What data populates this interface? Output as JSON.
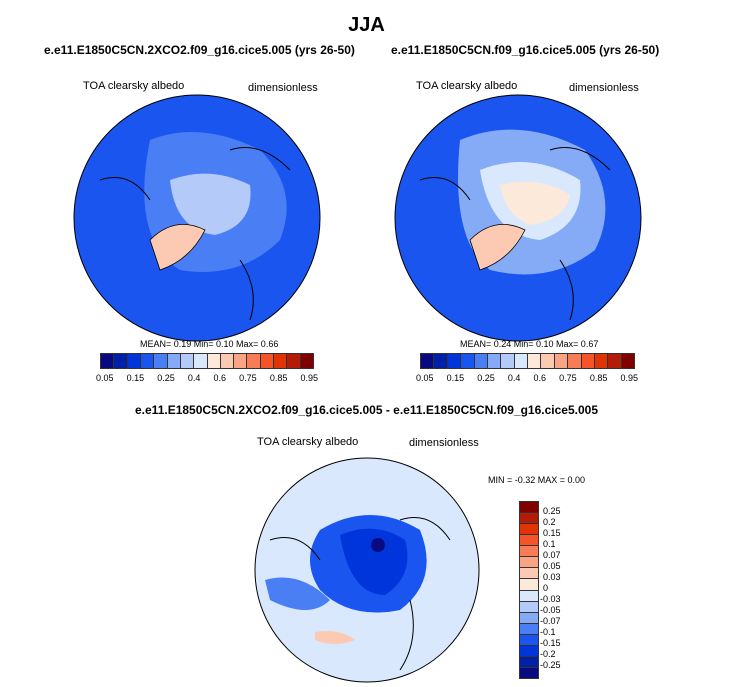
{
  "title": "JJA",
  "panels": [
    {
      "case": "e.e11.E1850C5CN.2XCO2.f09_g16.cice5.005 (yrs 26-50)",
      "variable": "TOA clearsky albedo",
      "units": "dimensionless",
      "stats": "MEAN=   0.19  Min=   0.10  Max=   0.66"
    },
    {
      "case": "e.e11.E1850C5CN.f09_g16.cice5.005 (yrs 26-50)",
      "variable": "TOA clearsky albedo",
      "units": "dimensionless",
      "stats": "MEAN=   0.24  Min=   0.10  Max=   0.67"
    }
  ],
  "diff": {
    "case": "e.e11.E1850C5CN.2XCO2.f09_g16.cice5.005 - e.e11.E1850C5CN.f09_g16.cice5.005",
    "variable": "TOA clearsky albedo",
    "units": "dimensionless",
    "stats": "MIN =  -0.32 MAX =    0.00"
  },
  "colorbar": {
    "colors": [
      "#0a0a80",
      "#0020a8",
      "#0035dc",
      "#1a55f0",
      "#4a7ef5",
      "#85aaf6",
      "#b4cbf9",
      "#d9e8fc",
      "#fde9d9",
      "#fcc9b2",
      "#f9a585",
      "#f87c55",
      "#f55428",
      "#e03405",
      "#b41c08",
      "#800000"
    ],
    "labels": [
      "0.05",
      "0.15",
      "0.25",
      "0.4",
      "0.6",
      "0.75",
      "0.85",
      "0.95"
    ],
    "diff_labels": [
      "0.25",
      "0.2",
      "0.15",
      "0.1",
      "0.07",
      "0.05",
      "0.03",
      "0",
      "-0.03",
      "-0.05",
      "-0.07",
      "-0.1",
      "-0.15",
      "-0.2",
      "-0.25"
    ]
  }
}
